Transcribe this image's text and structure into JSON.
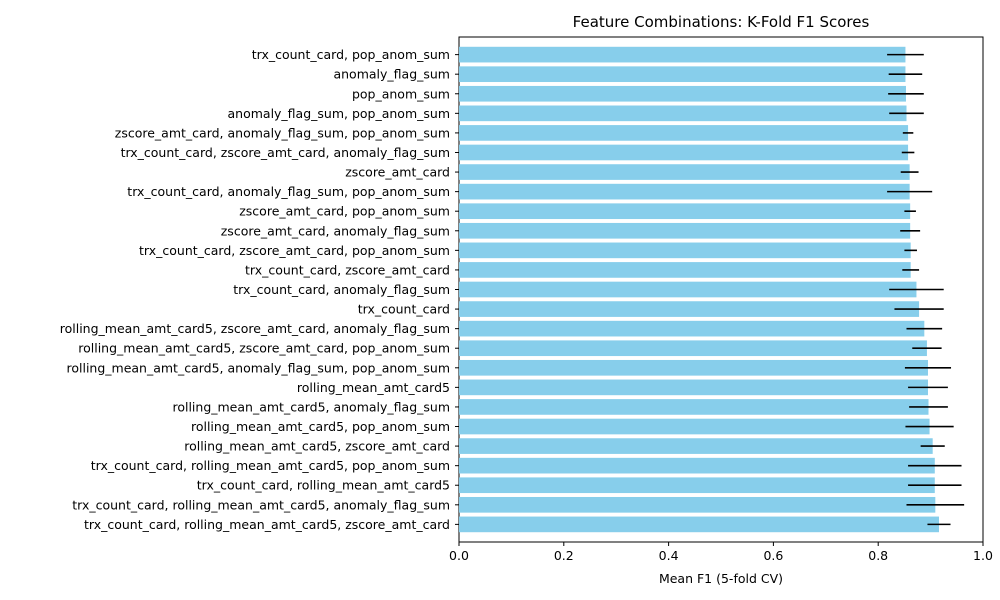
{
  "chart_data": {
    "type": "bar",
    "orientation": "horizontal",
    "title": "Feature Combinations: K-Fold F1 Scores",
    "xlabel": "Mean F1 (5-fold CV)",
    "ylabel": "",
    "xlim": [
      0,
      1.0
    ],
    "xticks": [
      "0.0",
      "0.2",
      "0.4",
      "0.6",
      "0.8",
      "1.0"
    ],
    "xtick_values": [
      0,
      0.2,
      0.4,
      0.6,
      0.8,
      1.0
    ],
    "bar_color": "#87CEEB",
    "error_color": "#000000",
    "categories": [
      "trx_count_card, pop_anom_sum",
      "anomaly_flag_sum",
      "pop_anom_sum",
      "anomaly_flag_sum, pop_anom_sum",
      "zscore_amt_card, anomaly_flag_sum, pop_anom_sum",
      "trx_count_card, zscore_amt_card, anomaly_flag_sum",
      "zscore_amt_card",
      "trx_count_card, anomaly_flag_sum, pop_anom_sum",
      "zscore_amt_card, pop_anom_sum",
      "zscore_amt_card, anomaly_flag_sum",
      "trx_count_card, zscore_amt_card, pop_anom_sum",
      "trx_count_card, zscore_amt_card",
      "trx_count_card, anomaly_flag_sum",
      "trx_count_card",
      "rolling_mean_amt_card5, zscore_amt_card, anomaly_flag_sum",
      "rolling_mean_amt_card5, zscore_amt_card, pop_anom_sum",
      "rolling_mean_amt_card5, anomaly_flag_sum, pop_anom_sum",
      "rolling_mean_amt_card5",
      "rolling_mean_amt_card5, anomaly_flag_sum",
      "rolling_mean_amt_card5, pop_anom_sum",
      "rolling_mean_amt_card5, zscore_amt_card",
      "trx_count_card, rolling_mean_amt_card5, pop_anom_sum",
      "trx_count_card, rolling_mean_amt_card5",
      "trx_count_card, rolling_mean_amt_card5, anomaly_flag_sum",
      "trx_count_card, rolling_mean_amt_card5, zscore_amt_card"
    ],
    "values": [
      0.852,
      0.852,
      0.853,
      0.854,
      0.857,
      0.857,
      0.86,
      0.86,
      0.861,
      0.861,
      0.862,
      0.862,
      0.873,
      0.878,
      0.888,
      0.893,
      0.895,
      0.895,
      0.896,
      0.898,
      0.904,
      0.908,
      0.908,
      0.909,
      0.916
    ],
    "errors": [
      0.035,
      0.032,
      0.034,
      0.033,
      0.01,
      0.012,
      0.017,
      0.043,
      0.011,
      0.019,
      0.012,
      0.016,
      0.052,
      0.047,
      0.034,
      0.028,
      0.044,
      0.038,
      0.037,
      0.046,
      0.023,
      0.051,
      0.051,
      0.055,
      0.022
    ]
  }
}
